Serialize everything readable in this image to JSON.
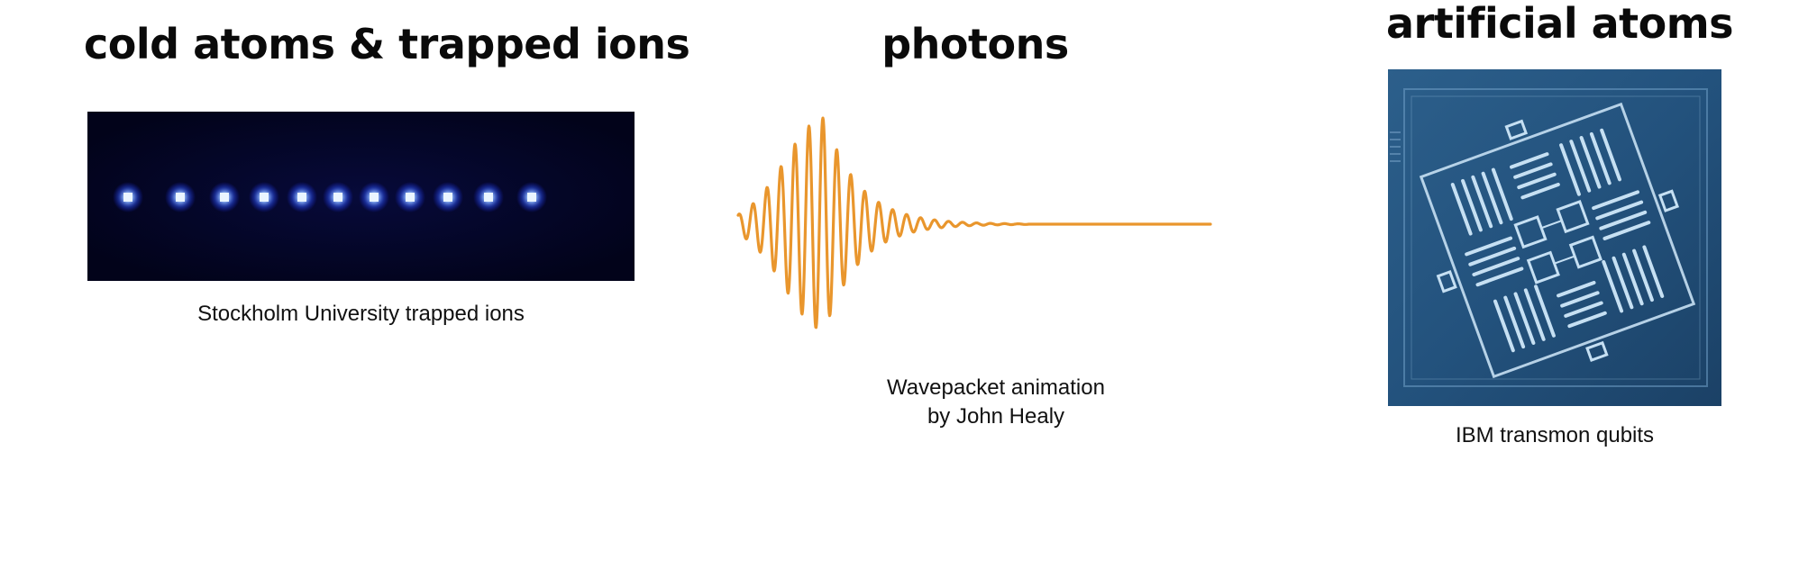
{
  "panels": [
    {
      "heading": "cold atoms & trapped ions",
      "caption": "Stockholm University trapped ions",
      "image": "trapped-ions-photo",
      "colors": {
        "background": "#03041f",
        "ion": "#cfe6ff",
        "glow": "#3a66ff"
      }
    },
    {
      "heading": "photons",
      "caption_lines": [
        "Wavepacket animation",
        "by John Healy"
      ],
      "image": "wavepacket-illustration",
      "colors": {
        "wave": "#e9962d"
      }
    },
    {
      "heading": "artificial atoms",
      "caption": "IBM transmon qubits",
      "image": "transmon-chip-photo",
      "colors": {
        "substrate": "#24517a",
        "metal": "#bcd9ee"
      }
    }
  ]
}
